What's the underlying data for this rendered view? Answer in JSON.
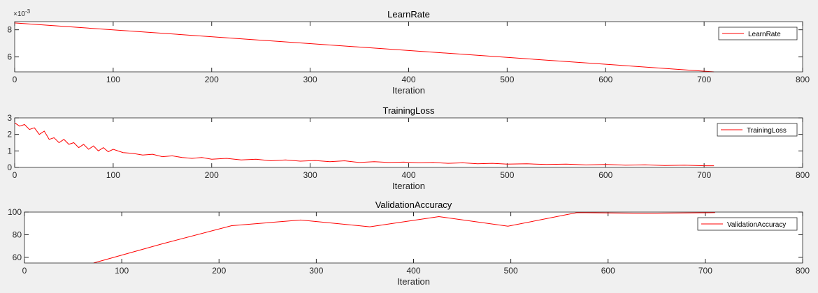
{
  "colors": {
    "background": "#f0f0f0",
    "axes_face": "#ffffff",
    "axes_line": "#262626",
    "series": "#ff0000"
  },
  "chart_data": [
    {
      "type": "line",
      "title": "LearnRate",
      "xlabel": "Iteration",
      "ylabel": "",
      "exponent_label": "×10",
      "exponent_power": "-3",
      "xlim": [
        0,
        800
      ],
      "ylim": [
        4.9,
        8.6
      ],
      "xticks": [
        0,
        100,
        200,
        300,
        400,
        500,
        600,
        700,
        800
      ],
      "yticks": [
        6,
        8
      ],
      "grid": false,
      "legend": "top-right",
      "series": [
        {
          "name": "LearnRate",
          "x": [
            0,
            710
          ],
          "y": [
            8.5,
            4.9
          ]
        }
      ]
    },
    {
      "type": "line",
      "title": "TrainingLoss",
      "xlabel": "Iteration",
      "ylabel": "",
      "xlim": [
        0,
        800
      ],
      "ylim": [
        0,
        3
      ],
      "xticks": [
        0,
        100,
        200,
        300,
        400,
        500,
        600,
        700,
        800
      ],
      "yticks": [
        0,
        1,
        2,
        3
      ],
      "grid": false,
      "legend": "top-right",
      "series": [
        {
          "name": "TrainingLoss",
          "x": [
            0,
            5,
            10,
            15,
            20,
            25,
            30,
            35,
            40,
            45,
            50,
            55,
            60,
            65,
            70,
            75,
            80,
            85,
            90,
            95,
            100,
            110,
            120,
            130,
            140,
            150,
            160,
            170,
            180,
            190,
            200,
            215,
            230,
            245,
            260,
            275,
            290,
            305,
            320,
            335,
            350,
            365,
            380,
            395,
            410,
            425,
            440,
            455,
            470,
            485,
            500,
            520,
            540,
            560,
            580,
            600,
            620,
            640,
            660,
            680,
            700,
            710
          ],
          "y": [
            2.7,
            2.5,
            2.6,
            2.3,
            2.4,
            2.0,
            2.2,
            1.7,
            1.8,
            1.5,
            1.7,
            1.4,
            1.5,
            1.2,
            1.4,
            1.1,
            1.3,
            1.0,
            1.2,
            0.95,
            1.1,
            0.9,
            0.85,
            0.75,
            0.8,
            0.65,
            0.7,
            0.6,
            0.55,
            0.6,
            0.5,
            0.55,
            0.45,
            0.5,
            0.4,
            0.45,
            0.38,
            0.42,
            0.35,
            0.4,
            0.3,
            0.35,
            0.3,
            0.32,
            0.28,
            0.3,
            0.25,
            0.28,
            0.22,
            0.25,
            0.2,
            0.22,
            0.18,
            0.2,
            0.15,
            0.18,
            0.14,
            0.16,
            0.12,
            0.14,
            0.1,
            0.1
          ]
        }
      ]
    },
    {
      "type": "line",
      "title": "ValidationAccuracy",
      "xlabel": "Iteration",
      "ylabel": "",
      "xlim": [
        0,
        800
      ],
      "ylim": [
        55,
        100
      ],
      "xticks": [
        0,
        100,
        200,
        300,
        400,
        500,
        600,
        700,
        800
      ],
      "yticks": [
        60,
        80,
        100
      ],
      "grid": false,
      "legend": "top-right",
      "series": [
        {
          "name": "ValidationAccuracy",
          "x": [
            71,
            142,
            213,
            284,
            355,
            426,
            497,
            568,
            639,
            710
          ],
          "y": [
            55,
            72,
            88,
            93,
            87,
            96,
            87.5,
            99.5,
            99,
            99.5
          ]
        }
      ]
    }
  ]
}
